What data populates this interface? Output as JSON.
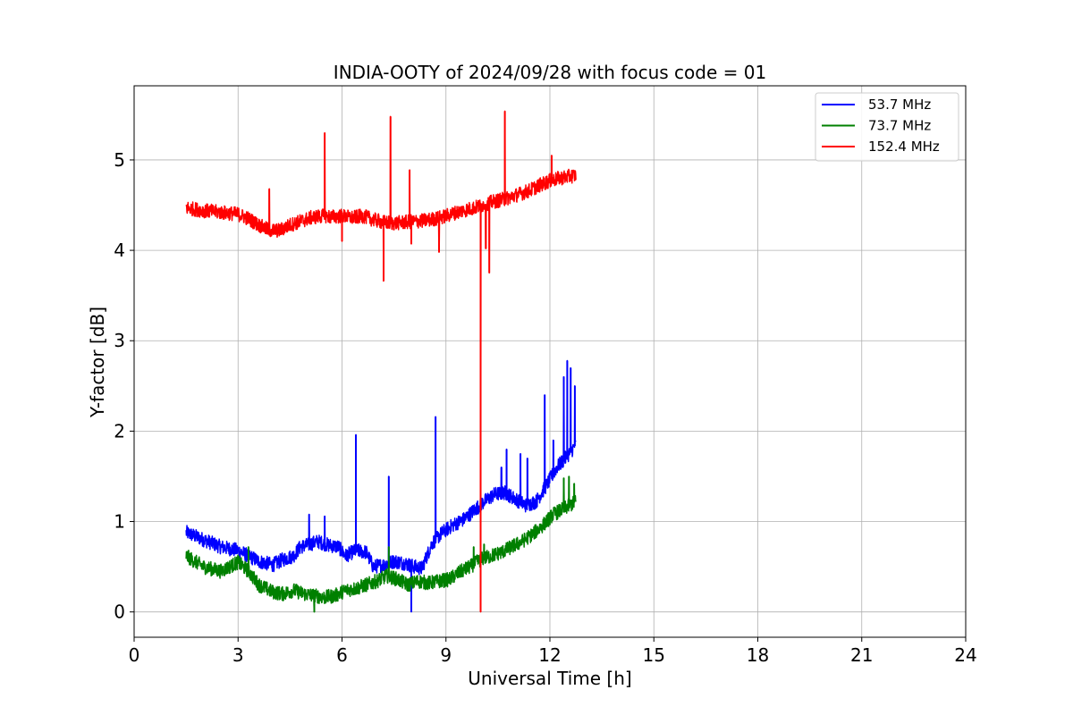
{
  "chart_data": {
    "type": "line",
    "title": "INDIA-OOTY of 2024/09/28 with focus code = 01",
    "xlabel": "Universal Time [h]",
    "ylabel": "Y-factor [dB]",
    "xlim": [
      0,
      24
    ],
    "ylim": [
      -0.28,
      5.82
    ],
    "xticks": [
      0,
      3,
      6,
      9,
      12,
      15,
      18,
      21,
      24
    ],
    "xtick_labels": [
      "0",
      "3",
      "6",
      "9",
      "12",
      "15",
      "18",
      "21",
      "24"
    ],
    "yticks": [
      0,
      1,
      2,
      3,
      4,
      5
    ],
    "ytick_labels": [
      "0",
      "1",
      "2",
      "3",
      "4",
      "5"
    ],
    "grid": true,
    "legend_position": "top-right",
    "series": [
      {
        "name": "53.7 MHz",
        "legend_label": "  53.7 MHz",
        "color": "#0000ff",
        "x": [
          1.5,
          2.0,
          2.5,
          3.0,
          3.3,
          3.6,
          4.0,
          4.3,
          4.6,
          4.8,
          5.0,
          5.3,
          5.6,
          5.9,
          6.1,
          6.4,
          6.7,
          6.9,
          7.2,
          7.5,
          7.8,
          8.1,
          8.3,
          8.6,
          8.9,
          9.2,
          9.5,
          9.8,
          10.1,
          10.4,
          10.7,
          11.0,
          11.3,
          11.6,
          11.9,
          12.2,
          12.5,
          12.75
        ],
        "y": [
          0.88,
          0.8,
          0.72,
          0.68,
          0.62,
          0.56,
          0.52,
          0.58,
          0.62,
          0.72,
          0.74,
          0.78,
          0.74,
          0.72,
          0.62,
          0.68,
          0.66,
          0.5,
          0.52,
          0.56,
          0.54,
          0.5,
          0.48,
          0.76,
          0.88,
          0.96,
          1.02,
          1.12,
          1.22,
          1.3,
          1.32,
          1.25,
          1.18,
          1.22,
          1.4,
          1.6,
          1.72,
          1.85
        ],
        "spikes": [
          [
            5.05,
            1.08
          ],
          [
            5.5,
            1.06
          ],
          [
            6.4,
            1.96
          ],
          [
            7.35,
            1.5
          ],
          [
            8.0,
            0.0
          ],
          [
            8.7,
            2.16
          ],
          [
            10.0,
            1.35
          ],
          [
            10.6,
            1.6
          ],
          [
            10.75,
            1.8
          ],
          [
            11.15,
            1.75
          ],
          [
            11.35,
            1.7
          ],
          [
            11.85,
            2.4
          ],
          [
            12.1,
            1.9
          ],
          [
            12.4,
            2.6
          ],
          [
            12.5,
            2.78
          ],
          [
            12.6,
            2.7
          ],
          [
            12.72,
            2.5
          ]
        ]
      },
      {
        "name": "73.7 MHz",
        "legend_label": "  73.7 MHz",
        "color": "#008000",
        "x": [
          1.5,
          2.0,
          2.5,
          3.0,
          3.3,
          3.6,
          4.0,
          4.3,
          4.6,
          4.9,
          5.2,
          5.5,
          5.8,
          6.1,
          6.4,
          6.7,
          7.0,
          7.3,
          7.6,
          7.9,
          8.2,
          8.5,
          8.8,
          9.1,
          9.4,
          9.7,
          10.0,
          10.3,
          10.6,
          10.9,
          11.2,
          11.5,
          11.8,
          12.1,
          12.4,
          12.75
        ],
        "y": [
          0.62,
          0.5,
          0.45,
          0.55,
          0.45,
          0.3,
          0.22,
          0.2,
          0.24,
          0.2,
          0.18,
          0.16,
          0.18,
          0.24,
          0.26,
          0.3,
          0.34,
          0.4,
          0.36,
          0.3,
          0.34,
          0.32,
          0.34,
          0.36,
          0.44,
          0.5,
          0.58,
          0.62,
          0.66,
          0.72,
          0.78,
          0.86,
          0.96,
          1.08,
          1.14,
          1.22
        ],
        "spikes": [
          [
            3.3,
            0.72
          ],
          [
            5.2,
            0.0
          ],
          [
            7.35,
            0.72
          ],
          [
            9.8,
            0.72
          ],
          [
            10.1,
            0.75
          ],
          [
            12.4,
            1.48
          ],
          [
            12.55,
            1.5
          ],
          [
            12.7,
            1.42
          ]
        ]
      },
      {
        "name": "152.4 MHz",
        "legend_label": "152.4 MHz",
        "color": "#ff0000",
        "x": [
          1.5,
          2.0,
          2.5,
          3.0,
          3.3,
          3.6,
          3.9,
          4.2,
          4.5,
          4.8,
          5.1,
          5.4,
          5.7,
          6.0,
          6.3,
          6.6,
          6.9,
          7.2,
          7.5,
          7.8,
          8.1,
          8.4,
          8.7,
          9.0,
          9.3,
          9.6,
          9.9,
          10.2,
          10.5,
          10.8,
          11.1,
          11.4,
          11.7,
          12.0,
          12.3,
          12.75
        ],
        "y": [
          4.47,
          4.44,
          4.42,
          4.4,
          4.35,
          4.28,
          4.22,
          4.22,
          4.28,
          4.32,
          4.36,
          4.38,
          4.37,
          4.38,
          4.36,
          4.38,
          4.34,
          4.31,
          4.3,
          4.31,
          4.32,
          4.33,
          4.35,
          4.38,
          4.42,
          4.45,
          4.48,
          4.52,
          4.55,
          4.58,
          4.62,
          4.66,
          4.72,
          4.77,
          4.8,
          4.83
        ],
        "spikes": [
          [
            3.9,
            4.68
          ],
          [
            5.5,
            5.3
          ],
          [
            6.0,
            4.1
          ],
          [
            7.2,
            3.66
          ],
          [
            7.4,
            5.48
          ],
          [
            7.95,
            4.89
          ],
          [
            8.0,
            4.07
          ],
          [
            8.8,
            3.98
          ],
          [
            10.0,
            0.0
          ],
          [
            10.15,
            4.02
          ],
          [
            10.25,
            3.75
          ],
          [
            10.7,
            5.54
          ],
          [
            12.05,
            5.05
          ]
        ]
      }
    ]
  }
}
